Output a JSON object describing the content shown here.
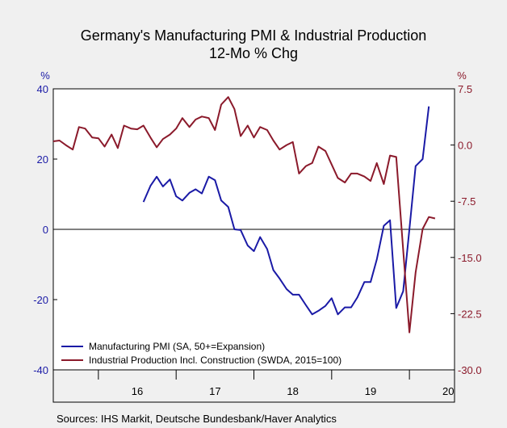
{
  "chart_data": {
    "type": "line",
    "title_lines": [
      "Germany's Manufacturing PMI & Industrial Production",
      "12-Mo % Chg"
    ],
    "source": "Sources:  IHS Markit, Deutsche Bundesbank/Haver Analytics",
    "left_axis": {
      "unit": "%",
      "min": -40,
      "max": 40,
      "ticks": [
        "40",
        "20",
        "0",
        "-20",
        "-40"
      ],
      "tick_values": [
        40,
        20,
        0,
        -20,
        -40
      ],
      "color": "#1a1aa6"
    },
    "right_axis": {
      "unit": "%",
      "min": -30,
      "max": 7.5,
      "ticks": [
        "7.5",
        "0.0",
        "-7.5",
        "-15.0",
        "-22.5",
        "-30.0"
      ],
      "tick_values": [
        7.5,
        0,
        -7.5,
        -15,
        -22.5,
        -30
      ],
      "color": "#8b1a2b"
    },
    "x_axis": {
      "min": 2015.42,
      "max": 2020.58,
      "labels": [
        "16",
        "17",
        "18",
        "19",
        "20"
      ],
      "label_positions": [
        2016.5,
        2017.5,
        2018.5,
        2019.5,
        2020.5
      ],
      "year_boundaries": [
        2016,
        2017,
        2018,
        2019,
        2020
      ]
    },
    "zero_line": true,
    "legend_placement": "bottom-left",
    "series": [
      {
        "name": "Manufacturing PMI (SA, 50+=Expansion)",
        "axis": "left",
        "color": "#1a1aa6",
        "points": [
          [
            2016.58,
            7.8
          ],
          [
            2016.67,
            12.4
          ],
          [
            2016.75,
            15.0
          ],
          [
            2016.83,
            12.2
          ],
          [
            2016.92,
            14.2
          ],
          [
            2017.0,
            9.4
          ],
          [
            2017.08,
            8.2
          ],
          [
            2017.17,
            10.4
          ],
          [
            2017.25,
            11.4
          ],
          [
            2017.33,
            10.2
          ],
          [
            2017.42,
            15.0
          ],
          [
            2017.5,
            14.0
          ],
          [
            2017.58,
            8.2
          ],
          [
            2017.67,
            6.4
          ],
          [
            2017.75,
            0.0
          ],
          [
            2017.83,
            -0.2
          ],
          [
            2017.92,
            -4.6
          ],
          [
            2018.0,
            -6.2
          ],
          [
            2018.08,
            -2.2
          ],
          [
            2018.17,
            -5.6
          ],
          [
            2018.25,
            -11.6
          ],
          [
            2018.33,
            -14.0
          ],
          [
            2018.42,
            -17.0
          ],
          [
            2018.5,
            -18.6
          ],
          [
            2018.58,
            -18.6
          ],
          [
            2018.67,
            -21.6
          ],
          [
            2018.75,
            -24.2
          ],
          [
            2018.83,
            -23.2
          ],
          [
            2018.92,
            -21.8
          ],
          [
            2019.0,
            -19.6
          ],
          [
            2019.08,
            -24.2
          ],
          [
            2019.17,
            -22.2
          ],
          [
            2019.25,
            -22.2
          ],
          [
            2019.33,
            -19.4
          ],
          [
            2019.42,
            -15.0
          ],
          [
            2019.5,
            -15.0
          ],
          [
            2019.58,
            -8.6
          ],
          [
            2019.67,
            1.0
          ],
          [
            2019.75,
            2.6
          ],
          [
            2019.83,
            -22.4
          ],
          [
            2019.92,
            -17.6
          ],
          [
            2020.0,
            0.0
          ],
          [
            2020.08,
            18.0
          ],
          [
            2020.17,
            20.0
          ],
          [
            2020.25,
            35.0
          ]
        ]
      },
      {
        "name": "Industrial Production Incl. Construction (SWDA, 2015=100)",
        "axis": "right",
        "color": "#8b1a2b",
        "points": [
          [
            2015.42,
            0.5
          ],
          [
            2015.5,
            0.6
          ],
          [
            2015.58,
            0.0
          ],
          [
            2015.67,
            -0.6
          ],
          [
            2015.75,
            2.4
          ],
          [
            2015.83,
            2.2
          ],
          [
            2015.92,
            1.0
          ],
          [
            2016.0,
            0.9
          ],
          [
            2016.08,
            -0.2
          ],
          [
            2016.17,
            1.4
          ],
          [
            2016.25,
            -0.4
          ],
          [
            2016.33,
            2.6
          ],
          [
            2016.42,
            2.2
          ],
          [
            2016.5,
            2.1
          ],
          [
            2016.58,
            2.6
          ],
          [
            2016.67,
            1.0
          ],
          [
            2016.75,
            -0.3
          ],
          [
            2016.83,
            0.8
          ],
          [
            2016.92,
            1.4
          ],
          [
            2017.0,
            2.2
          ],
          [
            2017.08,
            3.6
          ],
          [
            2017.17,
            2.4
          ],
          [
            2017.25,
            3.4
          ],
          [
            2017.33,
            3.8
          ],
          [
            2017.42,
            3.6
          ],
          [
            2017.5,
            2.0
          ],
          [
            2017.58,
            5.4
          ],
          [
            2017.67,
            6.4
          ],
          [
            2017.75,
            4.8
          ],
          [
            2017.83,
            1.2
          ],
          [
            2017.92,
            2.6
          ],
          [
            2018.0,
            1.0
          ],
          [
            2018.08,
            2.4
          ],
          [
            2018.17,
            2.0
          ],
          [
            2018.25,
            0.6
          ],
          [
            2018.33,
            -0.6
          ],
          [
            2018.42,
            0.0
          ],
          [
            2018.5,
            0.4
          ],
          [
            2018.58,
            -3.8
          ],
          [
            2018.67,
            -2.8
          ],
          [
            2018.75,
            -2.4
          ],
          [
            2018.83,
            -0.2
          ],
          [
            2018.92,
            -0.8
          ],
          [
            2019.0,
            -2.6
          ],
          [
            2019.08,
            -4.4
          ],
          [
            2019.17,
            -5.0
          ],
          [
            2019.25,
            -3.8
          ],
          [
            2019.33,
            -3.8
          ],
          [
            2019.42,
            -4.2
          ],
          [
            2019.5,
            -4.8
          ],
          [
            2019.58,
            -2.4
          ],
          [
            2019.67,
            -5.2
          ],
          [
            2019.75,
            -1.4
          ],
          [
            2019.83,
            -1.6
          ],
          [
            2019.92,
            -14.0
          ],
          [
            2020.0,
            -25.0
          ],
          [
            2020.08,
            -17.0
          ],
          [
            2020.17,
            -11.2
          ],
          [
            2020.25,
            -9.6
          ],
          [
            2020.33,
            -9.8
          ]
        ]
      }
    ]
  }
}
